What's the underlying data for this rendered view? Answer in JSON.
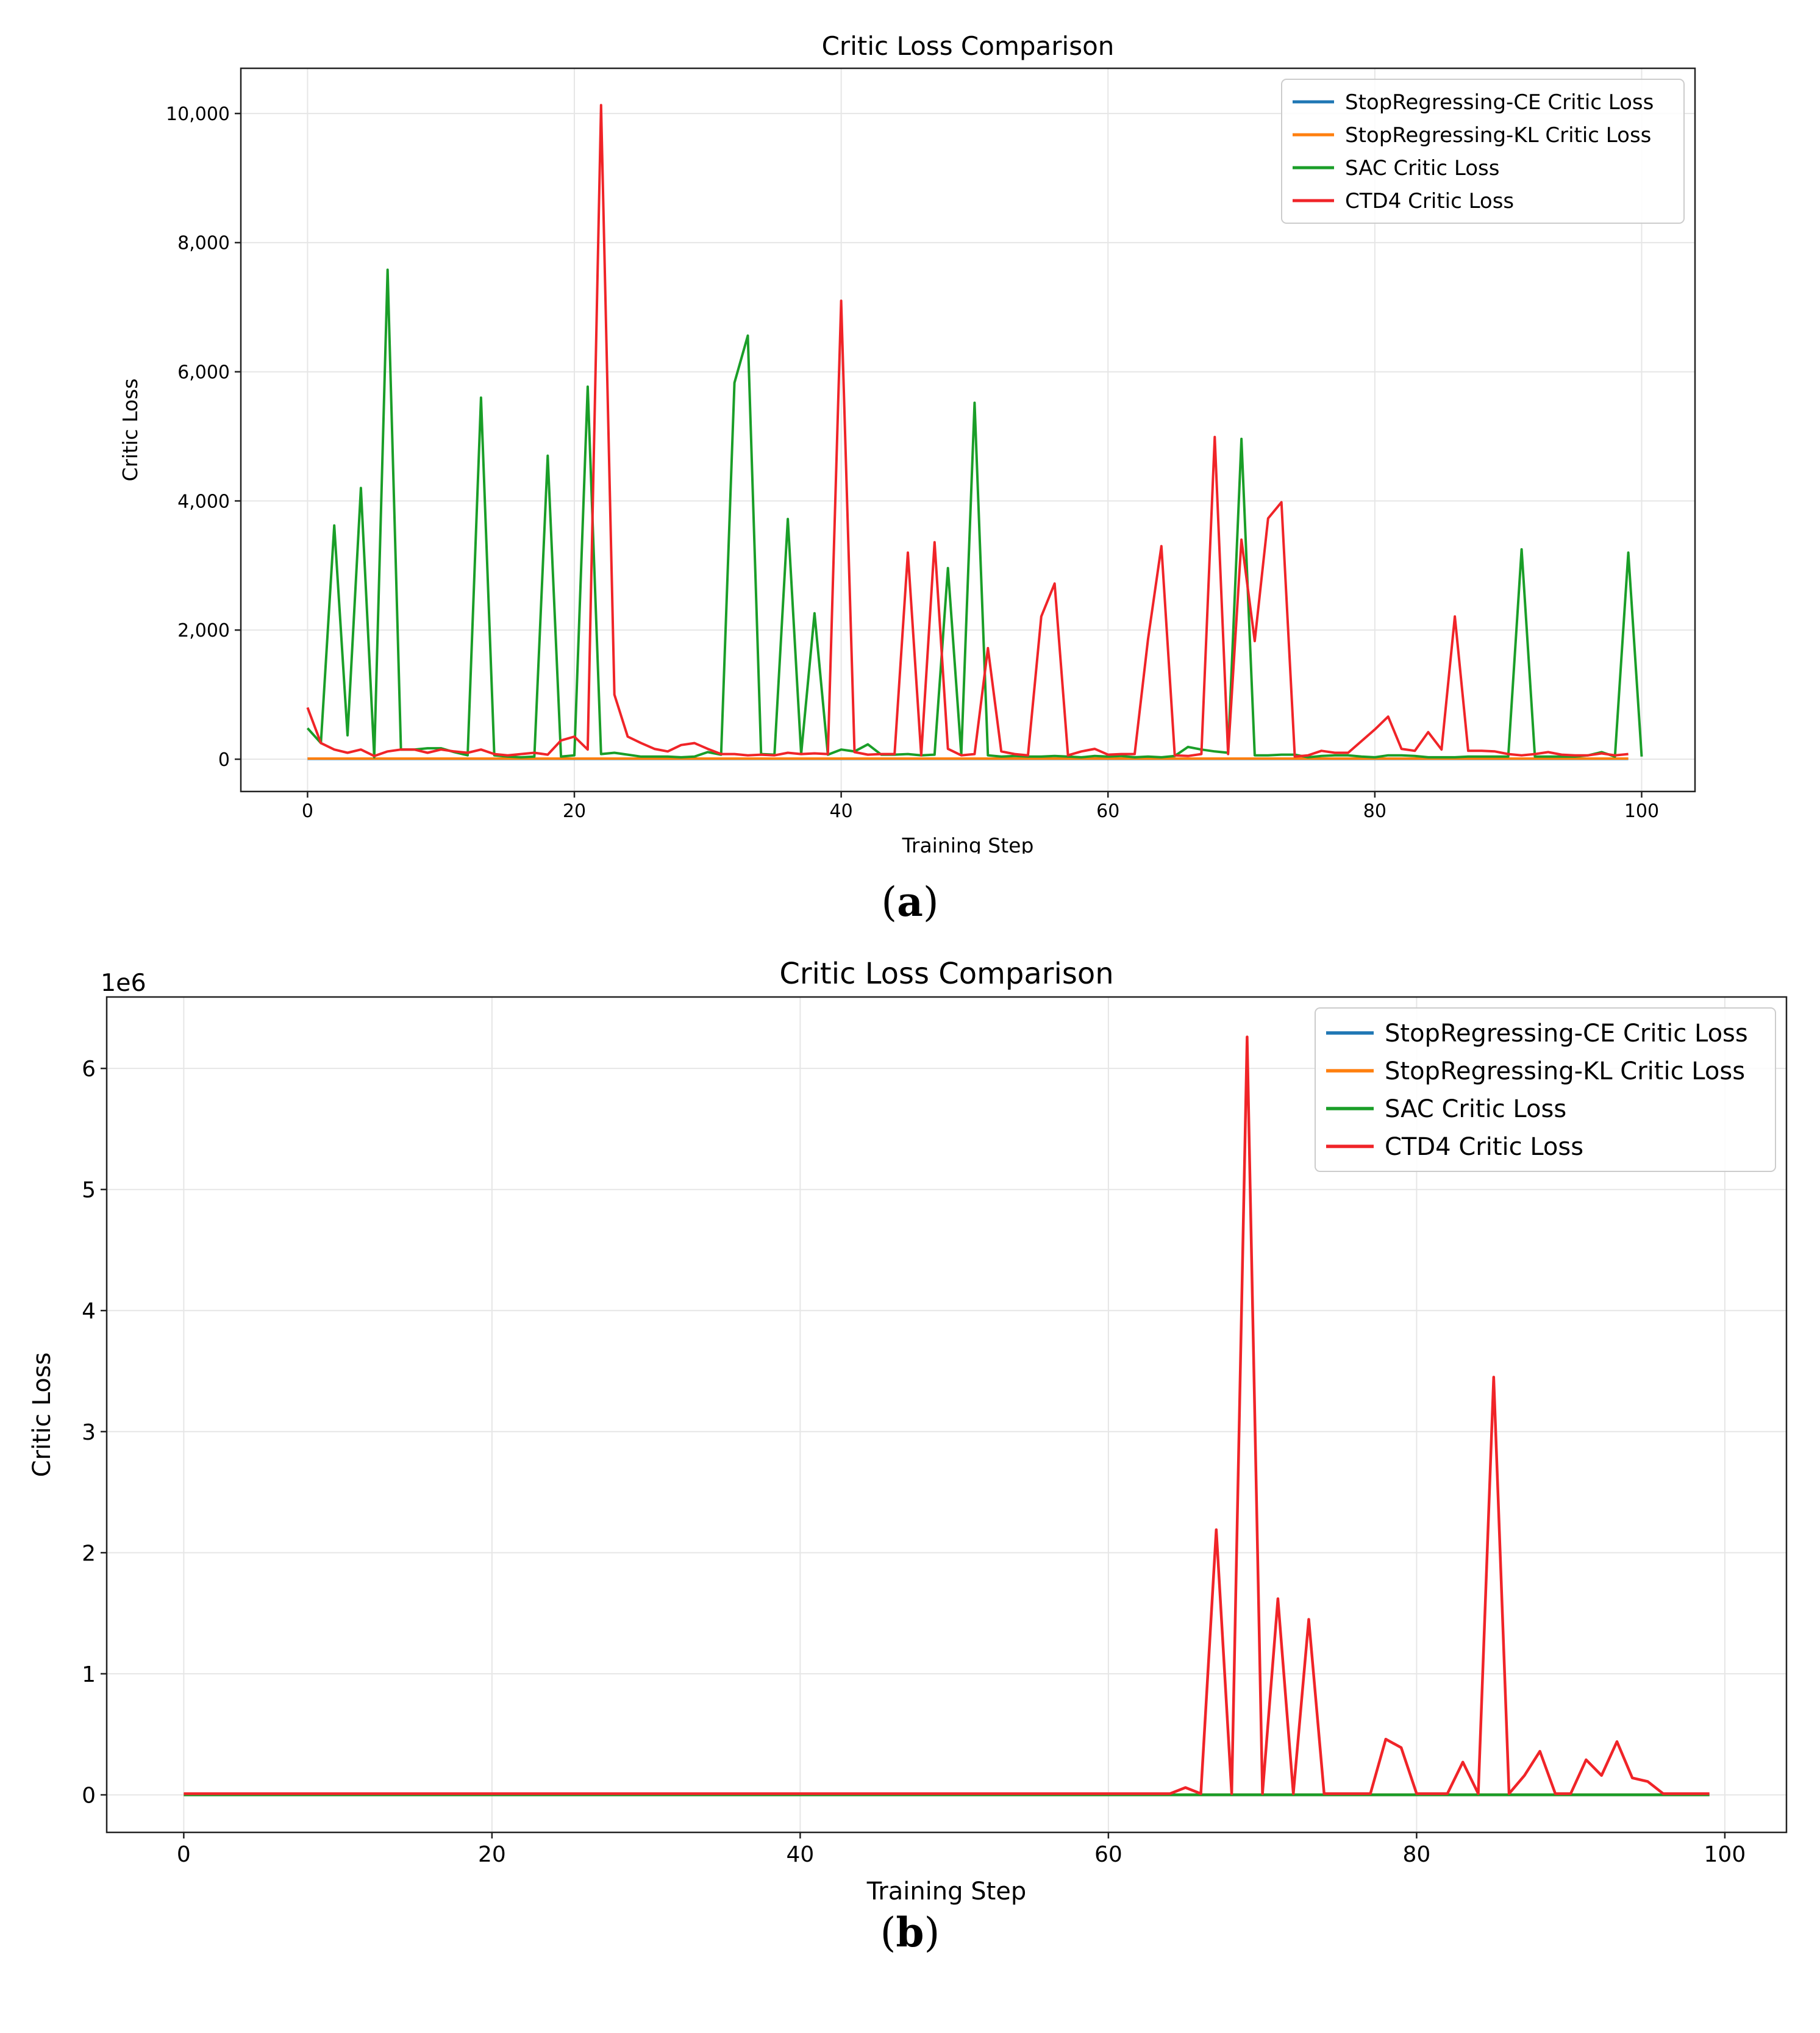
{
  "figure": {
    "caption_a": "a",
    "caption_b": "b"
  },
  "chart_data": [
    {
      "type": "line",
      "title": "Critic Loss Comparison",
      "xlabel": "Training Step",
      "ylabel": "Critic Loss",
      "xlim": [
        -5,
        104
      ],
      "ylim": [
        -500,
        10700
      ],
      "xticks": [
        0,
        20,
        40,
        60,
        80,
        100
      ],
      "xtick_labels": [
        "0",
        "20",
        "40",
        "60",
        "80",
        "100"
      ],
      "yticks": [
        0,
        2000,
        4000,
        6000,
        8000,
        10000
      ],
      "ytick_labels": [
        "0",
        "2,000",
        "4,000",
        "6,000",
        "8,000",
        "10,000"
      ],
      "grid": true,
      "legend_position": "top-right",
      "series": [
        {
          "name": "StopRegressing-CE Critic Loss",
          "color": "#1f77b4",
          "values": [
            5,
            5,
            5,
            5,
            5,
            5,
            5,
            5,
            5,
            5,
            5,
            5,
            5,
            5,
            5,
            5,
            5,
            5,
            5,
            5,
            5,
            5,
            5,
            5,
            5,
            5,
            5,
            5,
            5,
            5,
            5,
            5,
            5,
            5,
            5,
            5,
            5,
            5,
            5,
            5,
            5,
            5,
            5,
            5,
            5,
            5,
            5,
            5,
            5,
            5,
            5,
            5,
            5,
            5,
            5,
            5,
            5,
            5,
            5,
            5,
            5,
            5,
            5,
            5,
            5,
            5,
            5,
            5,
            5,
            5,
            5,
            5,
            5,
            5,
            5,
            5,
            5,
            5,
            5,
            5,
            5,
            5,
            5,
            5,
            5,
            5,
            5,
            5,
            5,
            5,
            5,
            5,
            5,
            5,
            5,
            5,
            5,
            5,
            5,
            5
          ]
        },
        {
          "name": "StopRegressing-KL Critic Loss",
          "color": "#ff7f0e",
          "values": [
            10,
            10,
            10,
            10,
            10,
            10,
            10,
            10,
            10,
            10,
            10,
            10,
            10,
            10,
            10,
            10,
            10,
            10,
            10,
            10,
            10,
            10,
            10,
            10,
            10,
            10,
            10,
            10,
            10,
            10,
            10,
            10,
            10,
            10,
            10,
            10,
            10,
            10,
            10,
            10,
            10,
            10,
            10,
            10,
            10,
            10,
            10,
            10,
            10,
            10,
            10,
            10,
            10,
            10,
            10,
            10,
            10,
            10,
            10,
            10,
            10,
            10,
            10,
            10,
            10,
            10,
            10,
            10,
            10,
            10,
            10,
            10,
            10,
            10,
            10,
            10,
            10,
            10,
            10,
            10,
            10,
            10,
            10,
            10,
            10,
            10,
            10,
            10,
            10,
            10,
            10,
            10,
            10,
            10,
            10,
            10,
            10,
            10,
            10,
            10
          ]
        },
        {
          "name": "SAC Critic Loss",
          "color": "#1a9e28",
          "values": [
            480,
            250,
            3620,
            370,
            4200,
            30,
            7580,
            150,
            150,
            170,
            170,
            110,
            60,
            5600,
            60,
            40,
            30,
            40,
            4700,
            40,
            60,
            5770,
            80,
            100,
            70,
            40,
            40,
            40,
            30,
            40,
            110,
            70,
            5830,
            6560,
            80,
            70,
            3720,
            80,
            2260,
            70,
            150,
            120,
            230,
            70,
            70,
            80,
            60,
            70,
            2960,
            70,
            5520,
            60,
            40,
            50,
            40,
            40,
            50,
            40,
            30,
            50,
            40,
            50,
            30,
            40,
            30,
            50,
            190,
            150,
            120,
            100,
            4960,
            60,
            60,
            70,
            70,
            30,
            50,
            60,
            60,
            40,
            30,
            60,
            60,
            50,
            30,
            30,
            30,
            40,
            40,
            40,
            40,
            3250,
            40,
            40,
            40,
            40,
            60,
            110,
            40,
            3200,
            40
          ]
        },
        {
          "name": "CTD4 Critic Loss",
          "color": "#f02428",
          "values": [
            800,
            250,
            150,
            100,
            150,
            50,
            120,
            150,
            150,
            100,
            150,
            120,
            100,
            150,
            80,
            60,
            80,
            100,
            70,
            290,
            350,
            150,
            10130,
            1000,
            350,
            250,
            160,
            120,
            220,
            250,
            160,
            80,
            80,
            60,
            70,
            60,
            100,
            80,
            90,
            80,
            7100,
            110,
            70,
            80,
            80,
            3200,
            60,
            3360,
            160,
            60,
            80,
            1720,
            120,
            80,
            60,
            2210,
            2720,
            60,
            120,
            160,
            70,
            80,
            80,
            1860,
            3300,
            60,
            50,
            80,
            4990,
            80,
            3400,
            1830,
            3730,
            3980,
            40,
            60,
            130,
            100,
            100,
            280,
            460,
            660,
            160,
            130,
            420,
            150,
            2210,
            130,
            130,
            120,
            80,
            60,
            80,
            110,
            70,
            60,
            60,
            90,
            60,
            80
          ]
        }
      ]
    },
    {
      "type": "line",
      "title": "Critic Loss Comparison",
      "xlabel": "Training Step",
      "ylabel": "Critic Loss",
      "offset_label": "1e6",
      "xlim": [
        -5,
        104
      ],
      "ylim": [
        -0.31,
        6.59
      ],
      "xticks": [
        0,
        20,
        40,
        60,
        80,
        100
      ],
      "xtick_labels": [
        "0",
        "20",
        "40",
        "60",
        "80",
        "100"
      ],
      "yticks": [
        0,
        1,
        2,
        3,
        4,
        5,
        6
      ],
      "ytick_labels": [
        "0",
        "1",
        "2",
        "3",
        "4",
        "5",
        "6"
      ],
      "grid": true,
      "legend_position": "top-right",
      "series": [
        {
          "name": "StopRegressing-CE Critic Loss",
          "color": "#1f77b4",
          "values": [
            0,
            0,
            0,
            0,
            0,
            0,
            0,
            0,
            0,
            0,
            0,
            0,
            0,
            0,
            0,
            0,
            0,
            0,
            0,
            0,
            0,
            0,
            0,
            0,
            0,
            0,
            0,
            0,
            0,
            0,
            0,
            0,
            0,
            0,
            0,
            0,
            0,
            0,
            0,
            0,
            0,
            0,
            0,
            0,
            0,
            0,
            0,
            0,
            0,
            0,
            0,
            0,
            0,
            0,
            0,
            0,
            0,
            0,
            0,
            0,
            0,
            0,
            0,
            0,
            0,
            0,
            0,
            0,
            0,
            0,
            0,
            0,
            0,
            0,
            0,
            0,
            0,
            0,
            0,
            0,
            0,
            0,
            0,
            0,
            0,
            0,
            0,
            0,
            0,
            0,
            0,
            0,
            0,
            0,
            0,
            0,
            0,
            0,
            0,
            0
          ]
        },
        {
          "name": "StopRegressing-KL Critic Loss",
          "color": "#ff7f0e",
          "values": [
            0,
            0,
            0,
            0,
            0,
            0,
            0,
            0,
            0,
            0,
            0,
            0,
            0,
            0,
            0,
            0,
            0,
            0,
            0,
            0,
            0,
            0,
            0,
            0,
            0,
            0,
            0,
            0,
            0,
            0,
            0,
            0,
            0,
            0,
            0,
            0,
            0,
            0,
            0,
            0,
            0,
            0,
            0,
            0,
            0,
            0,
            0,
            0,
            0,
            0,
            0,
            0,
            0,
            0,
            0,
            0,
            0,
            0,
            0,
            0,
            0,
            0,
            0,
            0,
            0,
            0,
            0,
            0,
            0,
            0,
            0,
            0,
            0,
            0,
            0,
            0,
            0,
            0,
            0,
            0,
            0,
            0,
            0,
            0,
            0,
            0,
            0,
            0,
            0,
            0,
            0,
            0,
            0,
            0,
            0,
            0,
            0,
            0,
            0,
            0
          ]
        },
        {
          "name": "SAC Critic Loss",
          "color": "#1a9e28",
          "values": [
            0,
            0,
            0,
            0,
            0,
            0,
            0,
            0,
            0,
            0,
            0,
            0,
            0,
            0,
            0,
            0,
            0,
            0,
            0,
            0,
            0,
            0,
            0,
            0,
            0,
            0,
            0,
            0,
            0,
            0,
            0,
            0,
            0,
            0,
            0,
            0,
            0,
            0,
            0,
            0,
            0,
            0,
            0,
            0,
            0,
            0,
            0,
            0,
            0,
            0,
            0,
            0,
            0,
            0,
            0,
            0,
            0,
            0,
            0,
            0,
            0,
            0,
            0,
            0,
            0,
            0,
            0,
            0,
            0,
            0,
            0,
            0,
            0,
            0,
            0,
            0,
            0,
            0,
            0,
            0,
            0,
            0,
            0,
            0,
            0,
            0,
            0,
            0,
            0,
            0,
            0,
            0,
            0,
            0,
            0,
            0,
            0,
            0,
            0,
            0
          ]
        },
        {
          "name": "CTD4 Critic Loss",
          "color": "#f02428",
          "values": [
            0.01,
            0.01,
            0.01,
            0.01,
            0.01,
            0.01,
            0.01,
            0.01,
            0.01,
            0.01,
            0.01,
            0.01,
            0.01,
            0.01,
            0.01,
            0.01,
            0.01,
            0.01,
            0.01,
            0.01,
            0.01,
            0.01,
            0.01,
            0.01,
            0.01,
            0.01,
            0.01,
            0.01,
            0.01,
            0.01,
            0.01,
            0.01,
            0.01,
            0.01,
            0.01,
            0.01,
            0.01,
            0.01,
            0.01,
            0.01,
            0.01,
            0.01,
            0.01,
            0.01,
            0.01,
            0.01,
            0.01,
            0.01,
            0.01,
            0.01,
            0.01,
            0.01,
            0.01,
            0.01,
            0.01,
            0.01,
            0.01,
            0.01,
            0.01,
            0.01,
            0.01,
            0.01,
            0.01,
            0.01,
            0.01,
            0.06,
            0.01,
            2.19,
            0.01,
            6.26,
            0.01,
            1.62,
            0.01,
            1.45,
            0.01,
            0.01,
            0.01,
            0.01,
            0.46,
            0.39,
            0.01,
            0.01,
            0.01,
            0.27,
            0.01,
            3.45,
            0.01,
            0.16,
            0.36,
            0.01,
            0.01,
            0.29,
            0.16,
            0.44,
            0.14,
            0.11,
            0.01,
            0.01,
            0.01,
            0.01
          ]
        }
      ]
    }
  ]
}
